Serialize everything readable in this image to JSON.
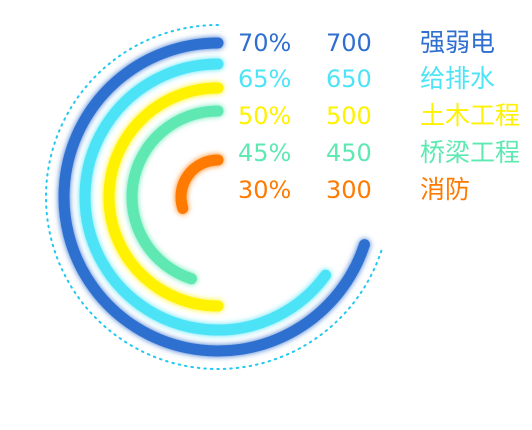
{
  "chart_data": {
    "type": "radial-bar",
    "max_percent": 100,
    "series": [
      {
        "category": "强弱电",
        "percent": 70,
        "percent_label": "70%",
        "value": 700,
        "value_label": "700",
        "color": "#2f6fcf"
      },
      {
        "category": "给排水",
        "percent": 65,
        "percent_label": "65%",
        "value": 650,
        "value_label": "650",
        "color": "#4ee3f7"
      },
      {
        "category": "土木工程",
        "percent": 50,
        "percent_label": "50%",
        "value": 500,
        "value_label": "500",
        "color": "#fff200"
      },
      {
        "category": "桥梁工程",
        "percent": 45,
        "percent_label": "45%",
        "value": 450,
        "value_label": "450",
        "color": "#5ee8b2"
      },
      {
        "category": "消防",
        "percent": 30,
        "percent_label": "30%",
        "value": 300,
        "value_label": "300",
        "color": "#ff7a00"
      }
    ],
    "outer_ring_color": "#22c8f0"
  }
}
